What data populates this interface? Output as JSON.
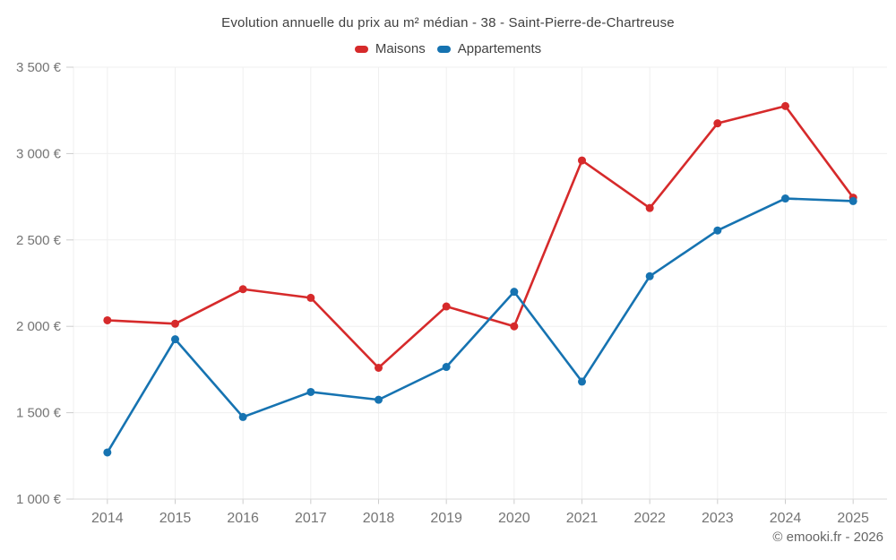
{
  "title": "Evolution annuelle du prix au m² médian - 38 - Saint-Pierre-de-Chartreuse",
  "legend": [
    {
      "label": "Maisons",
      "color": "#d62a2b"
    },
    {
      "label": "Appartements",
      "color": "#1673b1"
    }
  ],
  "copyright": "© emooki.fr - 2026",
  "colors": {
    "maisons": "#d62a2b",
    "appartements": "#1673b1",
    "grid": "#efefef",
    "axis": "#d9d9d9",
    "tick": "#cccccc",
    "tick_label": "#757575",
    "title_text": "#3f3f3f",
    "legend_text": "#424242",
    "copyright_text": "#666666",
    "background": "#ffffff"
  },
  "chart_data": {
    "type": "line",
    "title": "Evolution annuelle du prix au m² médian - 38 - Saint-Pierre-de-Chartreuse",
    "categories": [
      "2014",
      "2015",
      "2016",
      "2017",
      "2018",
      "2019",
      "2020",
      "2021",
      "2022",
      "2023",
      "2024",
      "2025"
    ],
    "series": [
      {
        "name": "Maisons",
        "color": "#d62a2b",
        "values": [
          2035,
          2015,
          2215,
          2165,
          1760,
          2115,
          2000,
          2960,
          2685,
          3175,
          3275,
          2745
        ]
      },
      {
        "name": "Appartements",
        "color": "#1673b1",
        "values": [
          1270,
          1925,
          1475,
          1620,
          1575,
          1765,
          2200,
          1680,
          2290,
          2555,
          2740,
          2725
        ]
      }
    ],
    "xlabel": "",
    "ylabel": "",
    "ylim": [
      1000,
      3500
    ],
    "yticks": [
      {
        "value": 1000,
        "label": "1 000 €"
      },
      {
        "value": 1500,
        "label": "1 500 €"
      },
      {
        "value": 2000,
        "label": "2 000 €"
      },
      {
        "value": 2500,
        "label": "2 500 €"
      },
      {
        "value": 3000,
        "label": "3 000 €"
      },
      {
        "value": 3500,
        "label": "3 500 €"
      }
    ],
    "grid": true,
    "legend_position": "top",
    "marker": "circle"
  }
}
